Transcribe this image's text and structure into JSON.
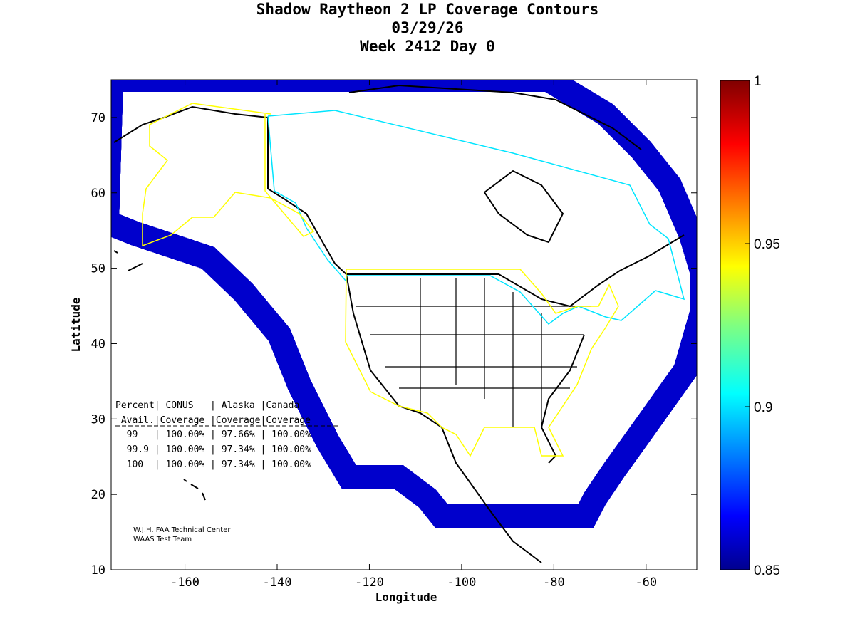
{
  "title": {
    "line1": "Shadow Raytheon 2 LP Coverage Contours",
    "line2": "03/29/26",
    "line3": "Week 2412 Day 0"
  },
  "chart_data": {
    "type": "heatmap",
    "title": "Shadow Raytheon 2 LP Coverage Contours",
    "xlabel": "Longitude",
    "ylabel": "Latitude",
    "xlim": [
      -176,
      -49
    ],
    "ylim": [
      10,
      75
    ],
    "xticks": [
      "-160",
      "-140",
      "-120",
      "-100",
      "-80",
      "-60"
    ],
    "yticks": [
      "10",
      "20",
      "30",
      "40",
      "50",
      "60",
      "70"
    ],
    "colorbar": {
      "range": [
        0.85,
        1
      ],
      "ticks": [
        "0.85",
        "0.9",
        "0.95",
        "1"
      ],
      "colormap": "jet"
    },
    "table": {
      "header1": "Percent| CONUS   | Alaska |Canada",
      "header2": " Avail.|Coverage |Coverage|Coverage",
      "rows": [
        {
          "avail": "99",
          "conus": "100.00%",
          "alaska": "97.66%",
          "canada": "100.00%"
        },
        {
          "avail": "99.9",
          "conus": "100.00%",
          "alaska": "97.34%",
          "canada": "100.00%"
        },
        {
          "avail": "100",
          "conus": "100.00%",
          "alaska": "97.34%",
          "canada": "100.00%"
        }
      ],
      "row_text": [
        "  99   | 100.00% | 97.66% | 100.00%",
        "  99.9 | 100.00% | 97.34% | 100.00%",
        "  100  | 100.00% | 97.34% | 100.00%"
      ]
    },
    "credits": [
      "W.J.H. FAA Technical Center",
      "WAAS Test Team"
    ]
  },
  "colors": {
    "full": "#800000",
    "boundary_cyan": "#00e5ff",
    "boundary_yellow": "#ffff00"
  }
}
